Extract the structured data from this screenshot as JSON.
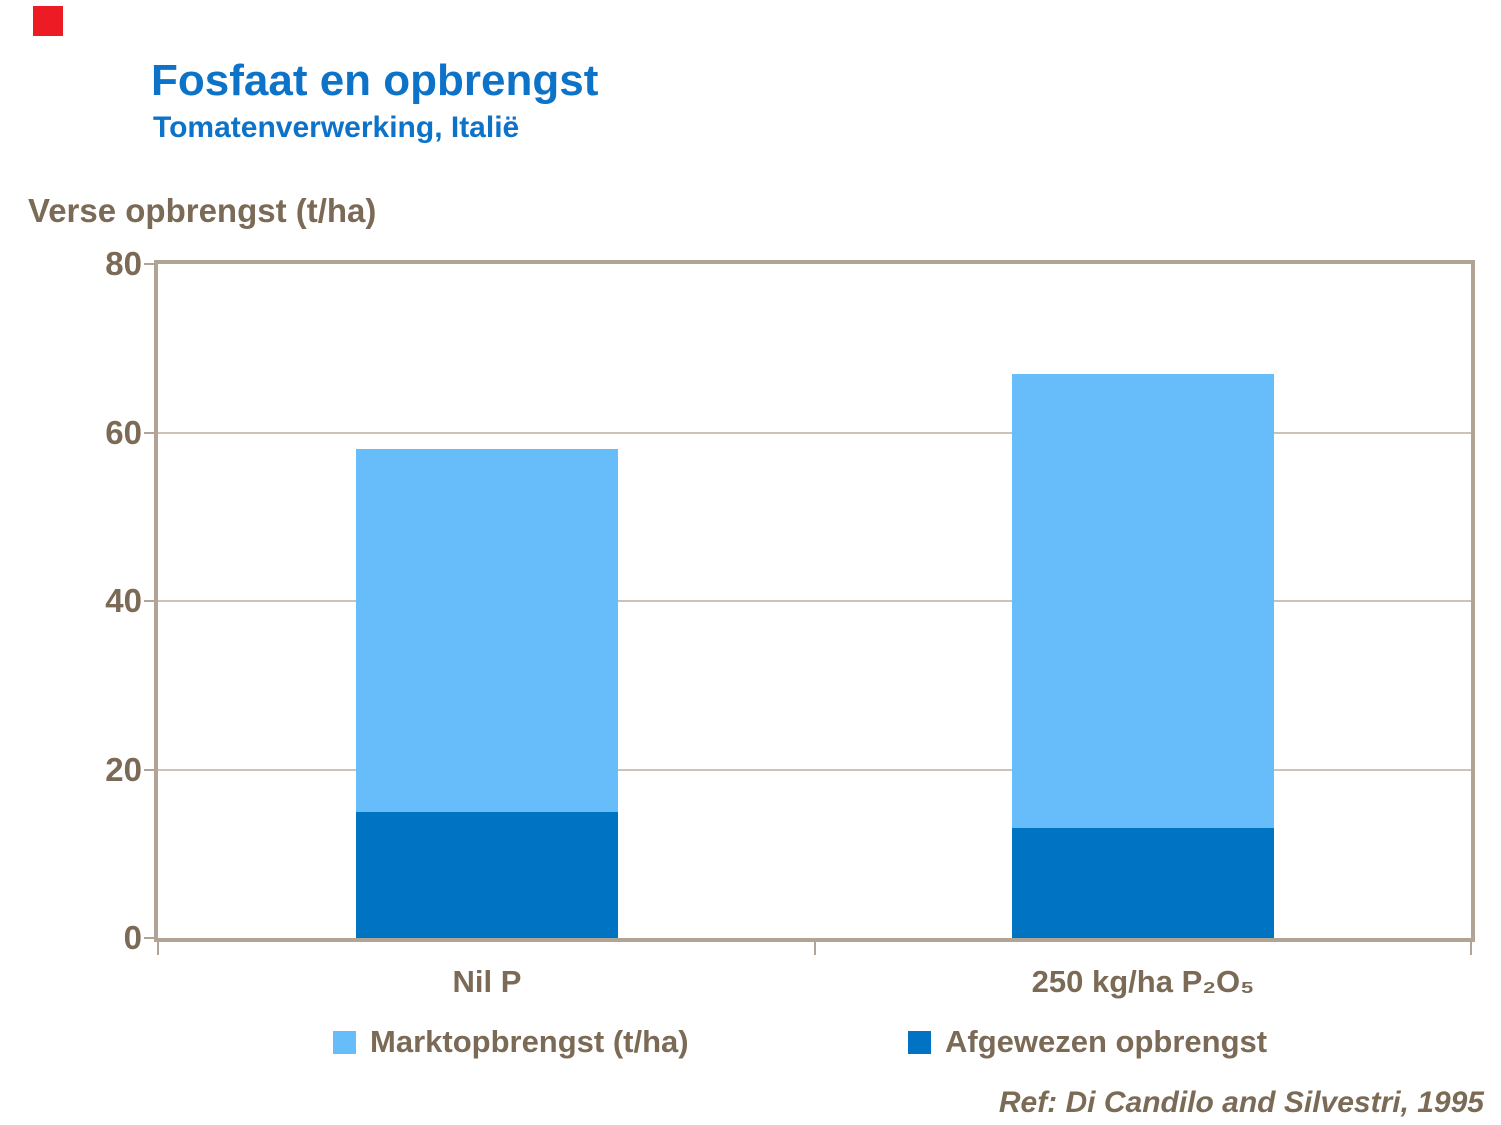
{
  "slide": {
    "logo_color": "#ed1c24",
    "title": "Fosfaat en opbrengst",
    "subtitle": "Tomatenverwerking,  Italië",
    "y_axis_title": "Verse opbrengst (t/ha)",
    "reference": "Ref: Di Candilo and Silvestri, 1995"
  },
  "chart_data": {
    "type": "bar",
    "stacked": true,
    "title": "Fosfaat en opbrengst",
    "subtitle": "Tomatenverwerking, Italië",
    "ylabel": "Verse opbrengst (t/ha)",
    "ylim": [
      0,
      80
    ],
    "yticks": [
      0,
      20,
      40,
      60,
      80
    ],
    "grid": "horizontal",
    "legend_position": "bottom",
    "categories": [
      "Nil P",
      "250 kg/ha  P₂O₅"
    ],
    "series": [
      {
        "name": "Afgewezen opbrengst",
        "color": "#0074c2",
        "values": [
          15,
          13
        ],
        "stack_order": "bottom"
      },
      {
        "name": "Marktopbrengst (t/ha)",
        "color": "#66bdfa",
        "values": [
          43,
          54
        ],
        "stack_order": "top"
      }
    ],
    "stack_totals": [
      58,
      67
    ]
  },
  "legend": {
    "items": [
      {
        "label": "Marktopbrengst (t/ha)",
        "color": "#66bdfa"
      },
      {
        "label": "Afgewezen opbrengst",
        "color": "#0074c2"
      }
    ]
  }
}
